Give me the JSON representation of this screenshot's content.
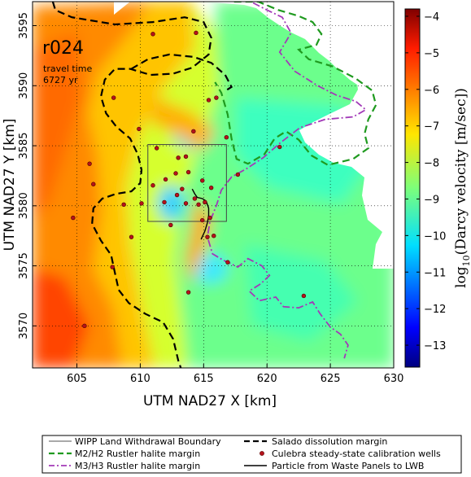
{
  "chart_data": {
    "type": "heatmap",
    "title": "",
    "xlabel": "UTM NAD27 X [km]",
    "ylabel": "UTM NAD27 Y [km]",
    "xlim": [
      601.5,
      630
    ],
    "ylim": [
      3566.5,
      3597
    ],
    "x_ticks": [
      {
        "value": 605,
        "label": "605"
      },
      {
        "value": 610,
        "label": "610"
      },
      {
        "value": 615,
        "label": "615"
      },
      {
        "value": 620,
        "label": "620"
      },
      {
        "value": 625,
        "label": "625"
      },
      {
        "value": 630,
        "label": "630"
      }
    ],
    "y_ticks": [
      {
        "value": 3570,
        "label": "3570"
      },
      {
        "value": 3575,
        "label": "3575"
      },
      {
        "value": 3580,
        "label": "3580"
      },
      {
        "value": 3585,
        "label": "3585"
      },
      {
        "value": 3590,
        "label": "3590"
      },
      {
        "value": 3595,
        "label": "3595"
      }
    ],
    "grid": true,
    "grid_style": "dotted",
    "colorbar": {
      "label_base": "log",
      "label_sub": "10",
      "label_rest": "(Darcy velocity [m/sec])",
      "range": [
        -13.6,
        -3.8
      ],
      "colormap": "jet",
      "ticks": [
        {
          "value": -4,
          "label": "−4"
        },
        {
          "value": -5,
          "label": "−5"
        },
        {
          "value": -6,
          "label": "−6"
        },
        {
          "value": -7,
          "label": "−7"
        },
        {
          "value": -8,
          "label": "−8"
        },
        {
          "value": -9,
          "label": "−9"
        },
        {
          "value": -10,
          "label": "−10"
        },
        {
          "value": -11,
          "label": "−11"
        },
        {
          "value": -12,
          "label": "−12"
        },
        {
          "value": -13,
          "label": "−13"
        }
      ]
    },
    "annotations": {
      "run_id": "r024",
      "travel_time_label": "travel time",
      "travel_time_value": "6727 yr"
    },
    "wipp_boundary": {
      "x": [
        610.6,
        616.8
      ],
      "y": [
        3578.7,
        3585.1
      ]
    },
    "wells": [
      [
        611.0,
        3594.3
      ],
      [
        614.4,
        3594.4
      ],
      [
        607.9,
        3589.0
      ],
      [
        615.4,
        3588.8
      ],
      [
        616.0,
        3589.0
      ],
      [
        609.9,
        3586.4
      ],
      [
        614.2,
        3586.2
      ],
      [
        616.8,
        3585.7
      ],
      [
        621.0,
        3584.9
      ],
      [
        611.3,
        3584.8
      ],
      [
        613.0,
        3584.0
      ],
      [
        613.6,
        3584.1
      ],
      [
        606.0,
        3583.5
      ],
      [
        613.8,
        3582.8
      ],
      [
        612.8,
        3582.7
      ],
      [
        617.7,
        3582.6
      ],
      [
        612.0,
        3582.2
      ],
      [
        614.9,
        3582.1
      ],
      [
        606.3,
        3581.8
      ],
      [
        611.0,
        3581.7
      ],
      [
        613.3,
        3581.4
      ],
      [
        615.6,
        3581.5
      ],
      [
        612.9,
        3580.9
      ],
      [
        614.3,
        3580.6
      ],
      [
        611.9,
        3580.3
      ],
      [
        613.6,
        3580.2
      ],
      [
        614.6,
        3580.1
      ],
      [
        615.1,
        3580.3
      ],
      [
        610.1,
        3580.2
      ],
      [
        608.7,
        3580.1
      ],
      [
        604.7,
        3579.0
      ],
      [
        612.4,
        3578.4
      ],
      [
        614.9,
        3578.8
      ],
      [
        615.5,
        3579.0
      ],
      [
        609.3,
        3577.4
      ],
      [
        615.3,
        3577.4
      ],
      [
        615.8,
        3577.5
      ],
      [
        616.9,
        3575.3
      ],
      [
        607.8,
        3574.9
      ],
      [
        613.8,
        3572.8
      ],
      [
        622.9,
        3572.5
      ],
      [
        605.6,
        3570.0
      ]
    ],
    "particle_path": [
      [
        614.1,
        3581.4
      ],
      [
        614.3,
        3581.0
      ],
      [
        614.5,
        3580.7
      ],
      [
        614.9,
        3580.6
      ],
      [
        615.2,
        3580.4
      ],
      [
        615.4,
        3579.8
      ],
      [
        615.4,
        3579.2
      ],
      [
        615.3,
        3578.6
      ],
      [
        615.1,
        3577.9
      ],
      [
        614.8,
        3577.2
      ]
    ],
    "salado_margin": [
      [
        603.1,
        3597.0
      ],
      [
        603.3,
        3596.3
      ],
      [
        604.6,
        3595.7
      ],
      [
        608.0,
        3595.1
      ],
      [
        611.0,
        3595.3
      ],
      [
        613.5,
        3595.7
      ],
      [
        615.0,
        3595.3
      ],
      [
        615.6,
        3594.0
      ],
      [
        615.4,
        3592.6
      ],
      [
        614.1,
        3591.5
      ],
      [
        612.6,
        3591.0
      ],
      [
        610.8,
        3590.9
      ],
      [
        609.2,
        3591.4
      ],
      [
        608.0,
        3591.4
      ],
      [
        607.2,
        3590.5
      ],
      [
        606.9,
        3589.1
      ],
      [
        607.3,
        3587.7
      ],
      [
        608.1,
        3586.6
      ],
      [
        609.2,
        3585.6
      ],
      [
        609.8,
        3584.3
      ],
      [
        610.1,
        3583.0
      ],
      [
        610.0,
        3581.9
      ],
      [
        609.3,
        3581.2
      ],
      [
        608.1,
        3581.0
      ],
      [
        607.0,
        3580.6
      ],
      [
        606.3,
        3579.8
      ],
      [
        606.2,
        3578.5
      ],
      [
        606.9,
        3577.1
      ],
      [
        607.7,
        3575.9
      ],
      [
        608.0,
        3574.4
      ],
      [
        608.3,
        3573.0
      ],
      [
        609.1,
        3571.9
      ],
      [
        610.4,
        3571.0
      ],
      [
        611.8,
        3570.3
      ],
      [
        612.6,
        3568.9
      ],
      [
        613.0,
        3567.1
      ],
      [
        613.2,
        3566.5
      ]
    ],
    "salado_margin_upper": [
      [
        609.3,
        3591.4
      ],
      [
        610.6,
        3592.2
      ],
      [
        612.3,
        3592.6
      ],
      [
        614.2,
        3592.4
      ],
      [
        615.6,
        3591.9
      ],
      [
        616.7,
        3590.9
      ],
      [
        617.2,
        3589.9
      ],
      [
        616.6,
        3589.5
      ]
    ],
    "m2h2_margin": [
      [
        617.4,
        3597.0
      ],
      [
        619.3,
        3597.0
      ],
      [
        620.9,
        3596.3
      ],
      [
        622.5,
        3595.8
      ],
      [
        623.6,
        3595.3
      ],
      [
        624.3,
        3594.3
      ],
      [
        623.9,
        3593.4
      ],
      [
        622.5,
        3593.0
      ],
      [
        623.3,
        3592.2
      ],
      [
        625.2,
        3591.6
      ],
      [
        627.0,
        3590.6
      ],
      [
        628.3,
        3589.6
      ],
      [
        628.6,
        3588.4
      ],
      [
        628.0,
        3587.2
      ],
      [
        627.7,
        3586.0
      ],
      [
        628.0,
        3584.8
      ],
      [
        626.8,
        3583.9
      ],
      [
        624.8,
        3583.4
      ],
      [
        623.5,
        3584.2
      ],
      [
        622.5,
        3585.5
      ],
      [
        621.5,
        3586.2
      ],
      [
        620.6,
        3585.6
      ],
      [
        619.8,
        3584.3
      ],
      [
        618.5,
        3583.5
      ],
      [
        617.6,
        3583.9
      ],
      [
        617.2,
        3585.6
      ],
      [
        616.9,
        3587.6
      ],
      [
        616.4,
        3589.4
      ],
      [
        615.9,
        3590.3
      ]
    ],
    "m3h3_margin": [
      [
        618.9,
        3596.9
      ],
      [
        620.0,
        3596.3
      ],
      [
        621.2,
        3595.7
      ],
      [
        621.9,
        3594.4
      ],
      [
        621.0,
        3592.8
      ],
      [
        622.2,
        3591.2
      ],
      [
        624.0,
        3590.0
      ],
      [
        625.5,
        3589.2
      ],
      [
        627.0,
        3588.7
      ],
      [
        627.8,
        3588.0
      ],
      [
        626.8,
        3587.4
      ],
      [
        624.6,
        3587.2
      ],
      [
        622.6,
        3586.5
      ],
      [
        621.0,
        3585.2
      ],
      [
        619.7,
        3584.0
      ],
      [
        618.4,
        3583.1
      ],
      [
        617.2,
        3582.4
      ],
      [
        616.4,
        3581.3
      ],
      [
        616.0,
        3580.0
      ],
      [
        615.5,
        3578.7
      ],
      [
        615.3,
        3577.4
      ],
      [
        615.7,
        3576.0
      ],
      [
        616.5,
        3575.5
      ],
      [
        617.7,
        3574.9
      ],
      [
        618.5,
        3575.6
      ],
      [
        619.6,
        3575.0
      ],
      [
        620.2,
        3574.2
      ],
      [
        619.5,
        3573.5
      ],
      [
        618.6,
        3572.9
      ],
      [
        619.4,
        3572.1
      ],
      [
        620.7,
        3572.4
      ],
      [
        621.3,
        3571.6
      ],
      [
        622.5,
        3571.5
      ],
      [
        623.6,
        3572.0
      ],
      [
        624.2,
        3571.0
      ],
      [
        625.0,
        3569.9
      ],
      [
        625.8,
        3569.3
      ],
      [
        626.4,
        3568.4
      ],
      [
        626.1,
        3567.3
      ]
    ]
  },
  "legend": {
    "items": [
      {
        "label": "WIPP Land Withdrawal Boundary",
        "style": "thin-solid",
        "color": "#555555"
      },
      {
        "label": "Salado dissolution margin",
        "style": "thick-dashed",
        "color": "#000000"
      },
      {
        "label": "M2/H2 Rustler halite margin",
        "style": "green-dashed",
        "color": "#1f9a1f"
      },
      {
        "label": "Culebra steady-state calibration wells",
        "style": "marker",
        "color": "#b5121b"
      },
      {
        "label": "M3/H3 Rustler halite margin",
        "style": "purple-dashdot",
        "color": "#a23ab8"
      },
      {
        "label": "Particle from Waste Panels to LWB",
        "style": "solid",
        "color": "#000000"
      }
    ]
  }
}
